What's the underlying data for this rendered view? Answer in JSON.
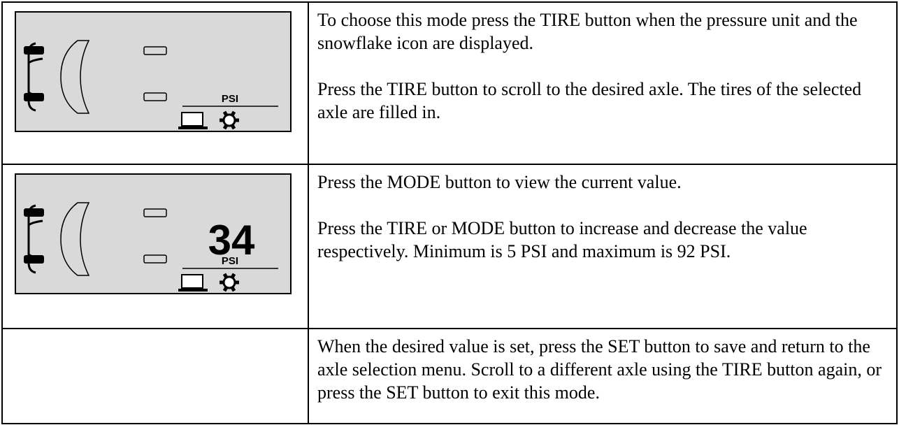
{
  "rows": [
    {
      "display": {
        "unit": "PSI"
      },
      "paragraphs": [
        "To choose this mode press the TIRE button when the pressure unit and the snowflake icon are displayed.",
        "Press the TIRE button to scroll to the desired axle. The tires of the selected axle are filled in."
      ]
    },
    {
      "display": {
        "value": 34,
        "unit": "PSI"
      },
      "paragraphs": [
        "Press the MODE button to view the current value.",
        "Press the TIRE or MODE button to increase and decrease the value respectively.  Minimum is 5 PSI and maximum is 92 PSI."
      ]
    },
    {
      "paragraphs": [
        "When the desired value is set, press the SET button to save and return to the axle selection menu.  Scroll to a different axle using the TIRE button again, or press the SET button to exit this mode."
      ]
    }
  ]
}
